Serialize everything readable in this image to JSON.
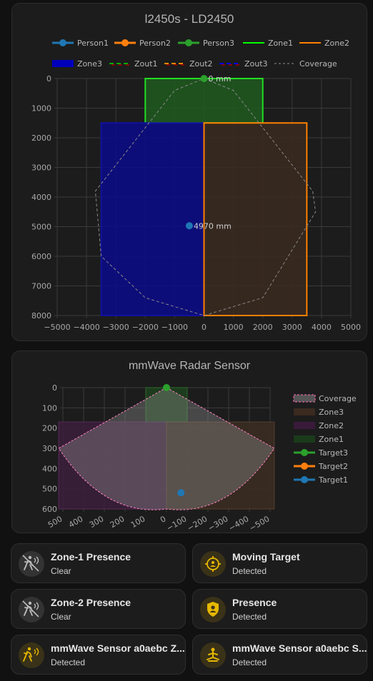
{
  "radar_card": {
    "title": "l2450s - LD2450",
    "legend": [
      {
        "label": "Person1",
        "color": "#1f77b4",
        "style": "point-line"
      },
      {
        "label": "Person2",
        "color": "#ff7f0e",
        "style": "point-line"
      },
      {
        "label": "Person3",
        "color": "#2ca02c",
        "style": "point-line"
      },
      {
        "label": "Zone1",
        "color": "#00ff00",
        "style": "line"
      },
      {
        "label": "Zone2",
        "color": "#ff8000",
        "style": "line"
      },
      {
        "label": "Zone3",
        "color": "#0000bb",
        "style": "box"
      },
      {
        "label": "Zout1",
        "color": "#00aa00",
        "style": "dash",
        "alt": "#aa0000"
      },
      {
        "label": "Zout2",
        "color": "#ff8800",
        "style": "dash",
        "alt": "#aa0000"
      },
      {
        "label": "Zout3",
        "color": "#0000ff",
        "style": "dash",
        "alt": "#aa0000"
      },
      {
        "label": "Coverage",
        "color": "#777777",
        "style": "dot"
      }
    ],
    "chart_data": {
      "type": "scatter",
      "xlim": [
        -5000,
        5000
      ],
      "ylim": [
        0,
        8000
      ],
      "y_inverted": true,
      "xticks": [
        -5000,
        -4000,
        -3000,
        -2000,
        -1000,
        0,
        1000,
        2000,
        3000,
        4000,
        5000
      ],
      "yticks": [
        0,
        1000,
        2000,
        3000,
        4000,
        5000,
        6000,
        7000,
        8000
      ],
      "zones": [
        {
          "name": "Zone1",
          "x": [
            -2000,
            2000
          ],
          "y": [
            0,
            1500
          ],
          "stroke": "#22dd22",
          "fill": "#1f5a1f"
        },
        {
          "name": "Zone3",
          "x": [
            -3500,
            0
          ],
          "y": [
            1500,
            8000
          ],
          "stroke": "#1010a0",
          "fill": "#0a0a8a"
        },
        {
          "name": "Zone2",
          "x": [
            0,
            3500
          ],
          "y": [
            1500,
            8000
          ],
          "stroke": "#ff8000",
          "fill": "#3a2a20"
        }
      ],
      "coverage": [
        [
          0,
          0
        ],
        [
          1000,
          400
        ],
        [
          3700,
          3800
        ],
        [
          3800,
          4500
        ],
        [
          2000,
          7400
        ],
        [
          0,
          8000
        ],
        [
          -2000,
          7400
        ],
        [
          -3500,
          6000
        ],
        [
          -3700,
          3800
        ],
        [
          -1000,
          400
        ],
        [
          0,
          0
        ]
      ],
      "targets": [
        {
          "name": "Person3",
          "x": 0,
          "y": 0,
          "color": "#2ca02c",
          "label": "0 mm"
        },
        {
          "name": "Person1",
          "x": -500,
          "y": 4970,
          "color": "#1f77b4",
          "label": "4970 mm"
        }
      ]
    }
  },
  "mmwave_card": {
    "title": "mmWave Radar Sensor",
    "legend": [
      {
        "label": "Coverage",
        "color": "#ff69b4",
        "style": "coverage"
      },
      {
        "label": "Zone3",
        "color": "#3a2a20",
        "style": "box"
      },
      {
        "label": "Zone2",
        "color": "#3a1a3a",
        "style": "box"
      },
      {
        "label": "Zone1",
        "color": "#1a3a1a",
        "style": "box"
      },
      {
        "label": "Target3",
        "color": "#2ca02c",
        "style": "point-line"
      },
      {
        "label": "Target2",
        "color": "#ff7f0e",
        "style": "point-line"
      },
      {
        "label": "Target1",
        "color": "#1f77b4",
        "style": "point-line"
      }
    ],
    "chart_data": {
      "type": "scatter",
      "xlim": [
        500,
        -500
      ],
      "ylim": [
        0,
        600
      ],
      "y_inverted": true,
      "xticks": [
        500,
        400,
        300,
        200,
        100,
        0,
        -100,
        -200,
        -300,
        -400,
        -500
      ],
      "yticks": [
        0,
        100,
        200,
        300,
        400,
        500,
        600
      ],
      "zones": [
        {
          "name": "Zone1",
          "x": [
            100,
            -100
          ],
          "y": [
            0,
            170
          ],
          "stroke": "#2a6a2a",
          "fill": "#1e3f1e"
        },
        {
          "name": "Zone2",
          "x": [
            520,
            0
          ],
          "y": [
            170,
            600
          ],
          "stroke": "#5a2a5a",
          "fill": "#3a1f3a"
        },
        {
          "name": "Zone3",
          "x": [
            0,
            -520
          ],
          "y": [
            170,
            600
          ],
          "stroke": "#5a4030",
          "fill": "#3a2c22"
        }
      ],
      "targets": [
        {
          "name": "Target1",
          "x": -70,
          "y": 520,
          "color": "#1f77b4"
        },
        {
          "name": "Target3",
          "x": 0,
          "y": 0,
          "color": "#2ca02c"
        }
      ]
    }
  },
  "tiles": [
    {
      "name": "Zone-1 Presence",
      "state": "Clear",
      "icon": "motion-sensor-off-icon",
      "active": false
    },
    {
      "name": "Moving Target",
      "state": "Detected",
      "icon": "target-account-icon",
      "active": true
    },
    {
      "name": "Zone-2 Presence",
      "state": "Clear",
      "icon": "motion-sensor-off-icon",
      "active": false
    },
    {
      "name": "Presence",
      "state": "Detected",
      "icon": "shield-account-icon",
      "active": true
    },
    {
      "name": "mmWave Sensor a0aebc Z...",
      "state": "Detected",
      "icon": "motion-sensor-icon",
      "active": true
    },
    {
      "name": "mmWave Sensor a0aebc S...",
      "state": "Detected",
      "icon": "meditation-icon",
      "active": true
    }
  ]
}
